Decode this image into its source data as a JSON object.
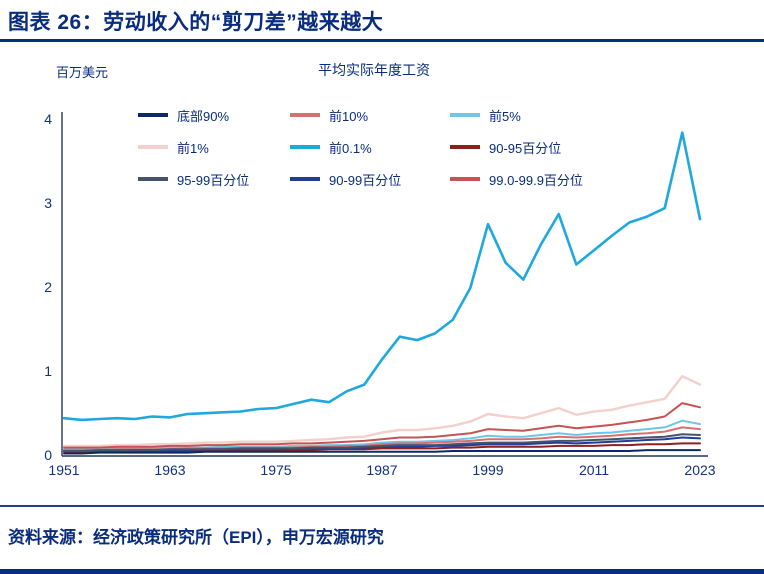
{
  "page": {
    "title": "图表 26：劳动收入的“剪刀差”越来越大",
    "source": "资料来源：经济政策研究所（EPI），申万宏源研究"
  },
  "colors": {
    "navy_accent": "#0A2C7E",
    "axis": "#25355E",
    "tick_text": "#12317E"
  },
  "chart_data": {
    "type": "line",
    "title": "平均实际年度工资",
    "y_unit_label": "百万美元",
    "grid": false,
    "legend_position": "top-inside",
    "xlim": [
      1951,
      2023
    ],
    "ylim": [
      0,
      4
    ],
    "yticks": [
      0,
      1,
      2,
      3,
      4
    ],
    "xticks": [
      1951,
      1963,
      1975,
      1987,
      1999,
      2011,
      2023
    ],
    "x": [
      1951,
      1953,
      1955,
      1957,
      1959,
      1961,
      1963,
      1965,
      1967,
      1969,
      1971,
      1973,
      1975,
      1977,
      1979,
      1981,
      1983,
      1985,
      1987,
      1989,
      1991,
      1993,
      1995,
      1997,
      1999,
      2001,
      2003,
      2005,
      2007,
      2009,
      2011,
      2013,
      2015,
      2017,
      2019,
      2021,
      2023
    ],
    "series": [
      {
        "key": "bottom-90",
        "name": "底部90%",
        "color": "#0E2A66",
        "z": 7,
        "values": [
          0.03,
          0.03,
          0.04,
          0.04,
          0.04,
          0.04,
          0.04,
          0.04,
          0.05,
          0.05,
          0.05,
          0.05,
          0.05,
          0.05,
          0.05,
          0.05,
          0.05,
          0.05,
          0.05,
          0.05,
          0.05,
          0.05,
          0.06,
          0.06,
          0.06,
          0.06,
          0.06,
          0.06,
          0.06,
          0.06,
          0.06,
          0.06,
          0.06,
          0.07,
          0.07,
          0.07,
          0.07
        ]
      },
      {
        "key": "top-10",
        "name": "前10%",
        "color": "#D97070",
        "z": 3,
        "values": [
          0.07,
          0.07,
          0.07,
          0.08,
          0.08,
          0.08,
          0.08,
          0.09,
          0.09,
          0.09,
          0.1,
          0.1,
          0.1,
          0.1,
          0.11,
          0.11,
          0.12,
          0.12,
          0.14,
          0.15,
          0.15,
          0.16,
          0.17,
          0.18,
          0.2,
          0.2,
          0.2,
          0.21,
          0.23,
          0.22,
          0.23,
          0.24,
          0.26,
          0.27,
          0.29,
          0.34,
          0.32
        ]
      },
      {
        "key": "top-5",
        "name": "前5%",
        "color": "#6EC6E8",
        "z": 2,
        "values": [
          0.08,
          0.08,
          0.08,
          0.09,
          0.09,
          0.09,
          0.1,
          0.1,
          0.1,
          0.11,
          0.11,
          0.11,
          0.11,
          0.12,
          0.12,
          0.13,
          0.13,
          0.14,
          0.16,
          0.17,
          0.17,
          0.18,
          0.19,
          0.21,
          0.24,
          0.23,
          0.23,
          0.25,
          0.27,
          0.25,
          0.27,
          0.28,
          0.3,
          0.32,
          0.34,
          0.42,
          0.38
        ]
      },
      {
        "key": "top-1",
        "name": "前1%",
        "color": "#F2D0CC",
        "z": 1,
        "values": [
          0.12,
          0.12,
          0.12,
          0.13,
          0.13,
          0.14,
          0.14,
          0.15,
          0.16,
          0.16,
          0.17,
          0.17,
          0.17,
          0.18,
          0.19,
          0.2,
          0.22,
          0.23,
          0.28,
          0.31,
          0.31,
          0.33,
          0.36,
          0.41,
          0.5,
          0.47,
          0.45,
          0.51,
          0.57,
          0.49,
          0.53,
          0.55,
          0.6,
          0.64,
          0.68,
          0.95,
          0.85
        ]
      },
      {
        "key": "top-0-1",
        "name": "前0.1%",
        "color": "#1FA8DC",
        "z": 9,
        "values": [
          0.45,
          0.43,
          0.44,
          0.45,
          0.44,
          0.47,
          0.46,
          0.5,
          0.51,
          0.52,
          0.53,
          0.56,
          0.57,
          0.62,
          0.67,
          0.64,
          0.77,
          0.85,
          1.15,
          1.42,
          1.38,
          1.46,
          1.62,
          2.0,
          2.76,
          2.3,
          2.1,
          2.52,
          2.88,
          2.28,
          2.45,
          2.62,
          2.78,
          2.85,
          2.95,
          3.85,
          2.82
        ]
      },
      {
        "key": "p90-95",
        "name": "90-95百分位",
        "color": "#8E1F1F",
        "z": 4,
        "values": [
          0.05,
          0.05,
          0.05,
          0.05,
          0.06,
          0.06,
          0.06,
          0.06,
          0.06,
          0.07,
          0.07,
          0.07,
          0.07,
          0.07,
          0.07,
          0.08,
          0.08,
          0.08,
          0.09,
          0.09,
          0.09,
          0.09,
          0.1,
          0.1,
          0.11,
          0.11,
          0.11,
          0.11,
          0.12,
          0.12,
          0.12,
          0.13,
          0.13,
          0.14,
          0.14,
          0.15,
          0.15
        ]
      },
      {
        "key": "p95-99",
        "name": "95-99百分位",
        "color": "#44546A",
        "z": 6,
        "values": [
          0.06,
          0.06,
          0.07,
          0.07,
          0.07,
          0.07,
          0.08,
          0.08,
          0.08,
          0.08,
          0.09,
          0.09,
          0.09,
          0.09,
          0.1,
          0.1,
          0.1,
          0.11,
          0.12,
          0.13,
          0.13,
          0.13,
          0.14,
          0.15,
          0.16,
          0.16,
          0.16,
          0.17,
          0.18,
          0.18,
          0.19,
          0.2,
          0.21,
          0.22,
          0.23,
          0.26,
          0.25
        ]
      },
      {
        "key": "p90-99",
        "name": "90-99百分位",
        "color": "#1F3D99",
        "z": 5,
        "values": [
          0.06,
          0.06,
          0.06,
          0.06,
          0.07,
          0.07,
          0.07,
          0.07,
          0.08,
          0.08,
          0.08,
          0.08,
          0.08,
          0.09,
          0.09,
          0.09,
          0.09,
          0.1,
          0.11,
          0.11,
          0.11,
          0.12,
          0.12,
          0.13,
          0.14,
          0.14,
          0.14,
          0.15,
          0.16,
          0.15,
          0.16,
          0.17,
          0.18,
          0.19,
          0.2,
          0.22,
          0.21
        ]
      },
      {
        "key": "p99-0-99-9",
        "name": "99.0-99.9百分位",
        "color": "#C65353",
        "z": 8,
        "values": [
          0.1,
          0.1,
          0.1,
          0.11,
          0.11,
          0.11,
          0.12,
          0.12,
          0.13,
          0.13,
          0.14,
          0.14,
          0.14,
          0.15,
          0.15,
          0.16,
          0.17,
          0.18,
          0.2,
          0.22,
          0.22,
          0.23,
          0.25,
          0.27,
          0.32,
          0.31,
          0.3,
          0.33,
          0.36,
          0.33,
          0.35,
          0.37,
          0.4,
          0.43,
          0.47,
          0.63,
          0.58
        ]
      }
    ]
  }
}
